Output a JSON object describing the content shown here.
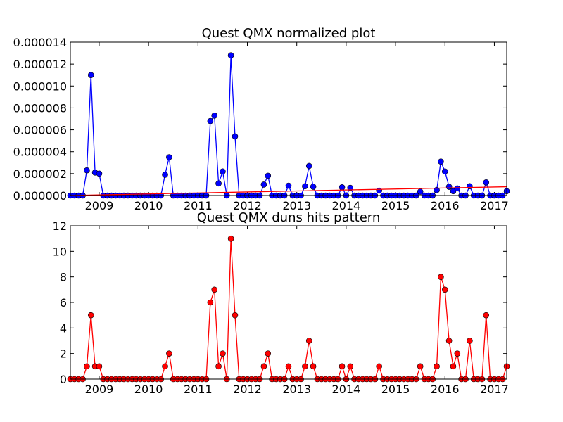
{
  "chart_data": [
    {
      "type": "line",
      "title": "Quest QMX normalized plot",
      "xlabel": "",
      "ylabel": "",
      "x_tick_labels": [
        "2009",
        "2010",
        "2011",
        "2012",
        "2013",
        "2014",
        "2015",
        "2016",
        "2017"
      ],
      "y_tick_labels": [
        "0.000000",
        "0.000002",
        "0.000004",
        "0.000006",
        "0.000008",
        "0.000010",
        "0.000012",
        "0.000014"
      ],
      "x_range": [
        "2008-06",
        "2017-04"
      ],
      "ylim": [
        0,
        1.4e-05
      ],
      "grid": false,
      "series": [
        {
          "color": "#0000ff",
          "marker": "circle",
          "x": [
            "2008-06",
            "2008-07",
            "2008-08",
            "2008-09",
            "2008-10",
            "2008-11",
            "2008-12",
            "2009-01",
            "2009-02",
            "2009-03",
            "2009-04",
            "2009-05",
            "2009-06",
            "2009-07",
            "2009-08",
            "2009-09",
            "2009-10",
            "2009-11",
            "2009-12",
            "2010-01",
            "2010-02",
            "2010-03",
            "2010-04",
            "2010-05",
            "2010-06",
            "2010-07",
            "2010-08",
            "2010-09",
            "2010-10",
            "2010-11",
            "2010-12",
            "2011-01",
            "2011-02",
            "2011-03",
            "2011-04",
            "2011-05",
            "2011-06",
            "2011-07",
            "2011-08",
            "2011-09",
            "2011-10",
            "2011-11",
            "2011-12",
            "2012-01",
            "2012-02",
            "2012-03",
            "2012-04",
            "2012-05",
            "2012-06",
            "2012-07",
            "2012-08",
            "2012-09",
            "2012-10",
            "2012-11",
            "2012-12",
            "2013-01",
            "2013-02",
            "2013-03",
            "2013-04",
            "2013-05",
            "2013-06",
            "2013-07",
            "2013-08",
            "2013-09",
            "2013-10",
            "2013-11",
            "2013-12",
            "2014-01",
            "2014-02",
            "2014-03",
            "2014-04",
            "2014-05",
            "2014-06",
            "2014-07",
            "2014-08",
            "2014-09",
            "2014-10",
            "2014-11",
            "2014-12",
            "2015-01",
            "2015-02",
            "2015-03",
            "2015-04",
            "2015-05",
            "2015-06",
            "2015-07",
            "2015-08",
            "2015-09",
            "2015-10",
            "2015-11",
            "2015-12",
            "2016-01",
            "2016-02",
            "2016-03",
            "2016-04",
            "2016-05",
            "2016-06",
            "2016-07",
            "2016-08",
            "2016-09",
            "2016-10",
            "2016-11",
            "2016-12",
            "2017-01",
            "2017-02",
            "2017-03",
            "2017-04"
          ],
          "values": [
            0,
            0,
            0,
            0,
            2.3e-06,
            1.1e-05,
            2.1e-06,
            2e-06,
            0,
            0,
            0,
            0,
            0,
            0,
            0,
            0,
            0,
            0,
            0,
            0,
            0,
            0,
            0,
            1.9e-06,
            3.5e-06,
            0,
            0,
            0,
            0,
            0,
            0,
            0,
            0,
            0,
            6.8e-06,
            7.3e-06,
            1.1e-06,
            2.2e-06,
            0,
            1.28e-05,
            5.4e-06,
            0,
            0,
            0,
            0,
            0,
            0,
            1e-06,
            1.8e-06,
            0,
            0,
            0,
            0,
            9e-07,
            0,
            0,
            0,
            8.5e-07,
            2.7e-06,
            8e-07,
            0,
            0,
            0,
            0,
            0,
            0,
            7.5e-07,
            0,
            7e-07,
            0,
            0,
            0,
            0,
            0,
            0,
            4.5e-07,
            0,
            0,
            0,
            0,
            0,
            0,
            0,
            0,
            0,
            3.5e-07,
            0,
            0,
            0,
            5e-07,
            3.1e-06,
            2.2e-06,
            8e-07,
            4e-07,
            6.5e-07,
            0,
            0,
            8.5e-07,
            0,
            0,
            0,
            1.2e-06,
            0,
            0,
            0,
            0,
            4e-07
          ]
        },
        {
          "color": "#ff0000",
          "marker": "none",
          "x": [
            "2008-06",
            "2017-04"
          ],
          "values": [
            0,
            8e-07
          ]
        }
      ]
    },
    {
      "type": "line",
      "title": "Quest QMX duns hits pattern",
      "xlabel": "",
      "ylabel": "",
      "x_tick_labels": [
        "2009",
        "2010",
        "2011",
        "2012",
        "2013",
        "2014",
        "2015",
        "2016",
        "2017"
      ],
      "y_tick_labels": [
        "0",
        "2",
        "4",
        "6",
        "8",
        "10",
        "12"
      ],
      "x_range": [
        "2008-06",
        "2017-04"
      ],
      "ylim": [
        0,
        12
      ],
      "grid": false,
      "series": [
        {
          "color": "#ff0000",
          "marker": "circle",
          "x": [
            "2008-06",
            "2008-07",
            "2008-08",
            "2008-09",
            "2008-10",
            "2008-11",
            "2008-12",
            "2009-01",
            "2009-02",
            "2009-03",
            "2009-04",
            "2009-05",
            "2009-06",
            "2009-07",
            "2009-08",
            "2009-09",
            "2009-10",
            "2009-11",
            "2009-12",
            "2010-01",
            "2010-02",
            "2010-03",
            "2010-04",
            "2010-05",
            "2010-06",
            "2010-07",
            "2010-08",
            "2010-09",
            "2010-10",
            "2010-11",
            "2010-12",
            "2011-01",
            "2011-02",
            "2011-03",
            "2011-04",
            "2011-05",
            "2011-06",
            "2011-07",
            "2011-08",
            "2011-09",
            "2011-10",
            "2011-11",
            "2011-12",
            "2012-01",
            "2012-02",
            "2012-03",
            "2012-04",
            "2012-05",
            "2012-06",
            "2012-07",
            "2012-08",
            "2012-09",
            "2012-10",
            "2012-11",
            "2012-12",
            "2013-01",
            "2013-02",
            "2013-03",
            "2013-04",
            "2013-05",
            "2013-06",
            "2013-07",
            "2013-08",
            "2013-09",
            "2013-10",
            "2013-11",
            "2013-12",
            "2014-01",
            "2014-02",
            "2014-03",
            "2014-04",
            "2014-05",
            "2014-06",
            "2014-07",
            "2014-08",
            "2014-09",
            "2014-10",
            "2014-11",
            "2014-12",
            "2015-01",
            "2015-02",
            "2015-03",
            "2015-04",
            "2015-05",
            "2015-06",
            "2015-07",
            "2015-08",
            "2015-09",
            "2015-10",
            "2015-11",
            "2015-12",
            "2016-01",
            "2016-02",
            "2016-03",
            "2016-04",
            "2016-05",
            "2016-06",
            "2016-07",
            "2016-08",
            "2016-09",
            "2016-10",
            "2016-11",
            "2016-12",
            "2017-01",
            "2017-02",
            "2017-03",
            "2017-04"
          ],
          "values": [
            0,
            0,
            0,
            0,
            1,
            5,
            1,
            1,
            0,
            0,
            0,
            0,
            0,
            0,
            0,
            0,
            0,
            0,
            0,
            0,
            0,
            0,
            0,
            1,
            2,
            0,
            0,
            0,
            0,
            0,
            0,
            0,
            0,
            0,
            6,
            7,
            1,
            2,
            0,
            11,
            5,
            0,
            0,
            0,
            0,
            0,
            0,
            1,
            2,
            0,
            0,
            0,
            0,
            1,
            0,
            0,
            0,
            1,
            3,
            1,
            0,
            0,
            0,
            0,
            0,
            0,
            1,
            0,
            1,
            0,
            0,
            0,
            0,
            0,
            0,
            1,
            0,
            0,
            0,
            0,
            0,
            0,
            0,
            0,
            0,
            1,
            0,
            0,
            0,
            1,
            8,
            7,
            3,
            1,
            2,
            0,
            0,
            3,
            0,
            0,
            0,
            5,
            0,
            0,
            0,
            0,
            1
          ]
        }
      ]
    }
  ]
}
